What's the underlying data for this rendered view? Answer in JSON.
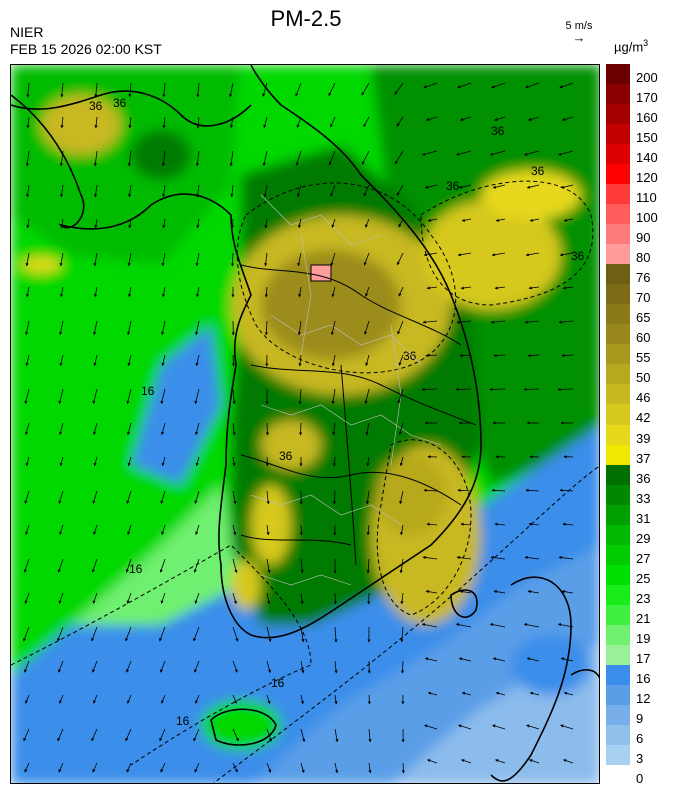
{
  "header": {
    "agency": "NIER",
    "datetime": "FEB 15 2026 02:00 KST",
    "title": "PM-2.5",
    "wind_reference": "5 m/s",
    "unit_prefix": "µg/m",
    "unit_superscript": "3"
  },
  "legend": {
    "labels": [
      "200",
      "170",
      "160",
      "150",
      "140",
      "120",
      "110",
      "100",
      "90",
      "80",
      "76",
      "70",
      "65",
      "60",
      "55",
      "50",
      "46",
      "42",
      "39",
      "37",
      "36",
      "33",
      "31",
      "29",
      "27",
      "25",
      "23",
      "21",
      "19",
      "17",
      "16",
      "12",
      "9",
      "6",
      "3",
      "0"
    ],
    "colors": [
      "#6b0000",
      "#8a0000",
      "#a50000",
      "#c20000",
      "#de0000",
      "#ff0000",
      "#ff3a3a",
      "#ff5c5c",
      "#ff7a7a",
      "#ff9c9c",
      "#6e5f12",
      "#7c6c16",
      "#8b7a18",
      "#98881b",
      "#a8981e",
      "#b8a81f",
      "#c8b820",
      "#d6c81e",
      "#e6d81a",
      "#f0e800",
      "#007000",
      "#008800",
      "#00a000",
      "#00b800",
      "#00cc00",
      "#00e000",
      "#1aeb1a",
      "#40f040",
      "#70f070",
      "#98f098",
      "#3a8eea",
      "#5a9ee8",
      "#78aeea",
      "#90c0ec",
      "#a8d0f0"
    ]
  },
  "contour_labels": [
    "36",
    "36",
    "36",
    "36",
    "36",
    "36",
    "36",
    "36",
    "16",
    "16",
    "16",
    "16"
  ],
  "map_features": {
    "coastline_color": "#000000",
    "province_border_color": "#000000",
    "county_border_color": "#bfbfbf"
  }
}
